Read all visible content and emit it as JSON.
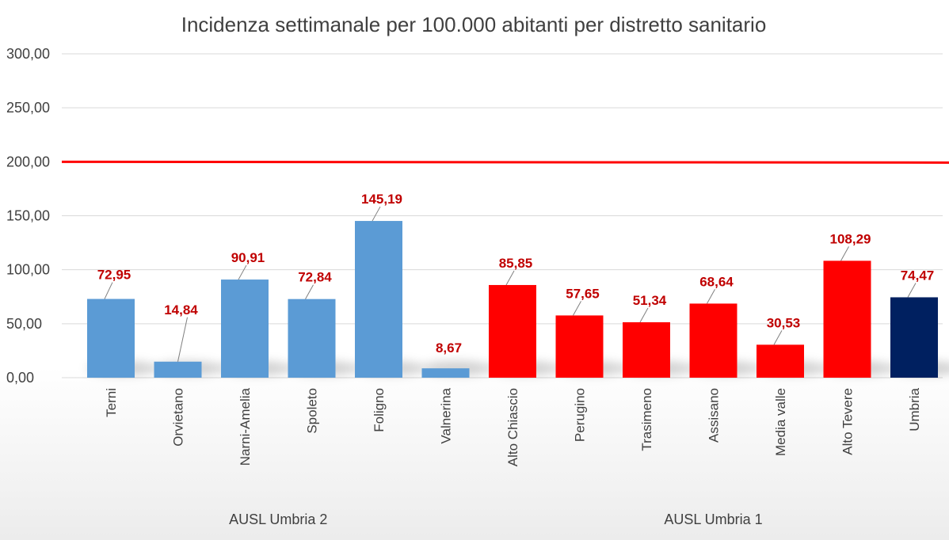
{
  "chart_data": {
    "type": "bar",
    "title": "Incidenza settimanale per 100.000 abitanti per distretto sanitario",
    "xlabel": "",
    "ylabel": "",
    "ylim": [
      0,
      300
    ],
    "yticks": [
      "0,00",
      "50,00",
      "100,00",
      "150,00",
      "200,00",
      "250,00",
      "300,00"
    ],
    "ytick_values": [
      0,
      50,
      100,
      150,
      200,
      250,
      300
    ],
    "grid": true,
    "categories": [
      "Terni",
      "Orvietano",
      "Narni-Amelia",
      "Spoleto",
      "Foligno",
      "Valnerina",
      "Alto Chiascio",
      "Perugino",
      "Trasimeno",
      "Assisano",
      "Media valle",
      "Alto Tevere",
      "Umbria"
    ],
    "values": [
      72.95,
      14.84,
      90.91,
      72.84,
      145.19,
      8.67,
      85.85,
      57.65,
      51.34,
      68.64,
      30.53,
      108.29,
      74.47
    ],
    "value_labels": [
      "72,95",
      "14,84",
      "90,91",
      "72,84",
      "145,19",
      "8,67",
      "85,85",
      "57,65",
      "51,34",
      "68,64",
      "30,53",
      "108,29",
      "74,47"
    ],
    "bar_colors": [
      "#5b9bd5",
      "#5b9bd5",
      "#5b9bd5",
      "#5b9bd5",
      "#5b9bd5",
      "#5b9bd5",
      "#ff0000",
      "#ff0000",
      "#ff0000",
      "#ff0000",
      "#ff0000",
      "#ff0000",
      "#002060"
    ],
    "groups": [
      {
        "label": "AUSL Umbria 2",
        "start": 0,
        "end": 5
      },
      {
        "label": "AUSL Umbria 1",
        "start": 6,
        "end": 12
      }
    ],
    "reference_line": {
      "value": 200,
      "color": "#ff0000"
    },
    "label_color": "#c00000"
  }
}
